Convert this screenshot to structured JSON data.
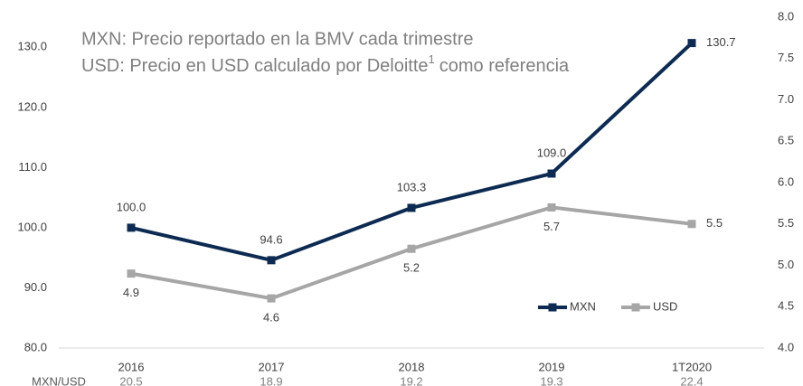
{
  "chart_data": {
    "type": "line",
    "title": "MXN: Precio reportado en la BMV cada trimestre",
    "subtitle": [
      "USD: Precio en USD calculado por Deloitte",
      "1",
      "como referencia"
    ],
    "categories": [
      "2016",
      "2017",
      "2018",
      "2019",
      "1T2020"
    ],
    "series": [
      {
        "name": "MXN",
        "color": "#0d2b52",
        "axis": "y",
        "values": [
          100.0,
          94.6,
          103.3,
          109.0,
          130.7
        ],
        "value_labels": [
          "100.0",
          "94.6",
          "103.3",
          "109.0",
          "130.7"
        ]
      },
      {
        "name": "USD",
        "color": "#a6a6a6",
        "axis": "y2",
        "values": [
          4.9,
          4.6,
          5.2,
          5.7,
          5.5
        ]
      }
    ],
    "ylim": [
      80,
      135
    ],
    "yticks": [
      {
        "value": 80,
        "label": "80.0"
      },
      {
        "value": 90,
        "label": "90.0"
      },
      {
        "value": 100,
        "label": "100.0"
      },
      {
        "value": 110,
        "label": "110.0"
      },
      {
        "value": 120,
        "label": "120.0"
      },
      {
        "value": 130,
        "label": "130.0"
      }
    ],
    "y2lim": [
      4,
      8
    ],
    "y2ticks": [
      {
        "value": 4,
        "label": "4.0"
      },
      4.5,
      {
        "value": 5,
        "label": "5.0"
      },
      5.5,
      {
        "value": 6,
        "label": "6.0"
      },
      6.5,
      {
        "value": 7,
        "label": "7.0"
      },
      7.5,
      {
        "value": 8,
        "label": "8.0"
      }
    ],
    "legend": "bottom-right",
    "exchange_rate": {
      "label": "MXN/USD",
      "values": [
        20.5,
        18.9,
        19.2,
        19.3,
        22.4
      ]
    }
  }
}
